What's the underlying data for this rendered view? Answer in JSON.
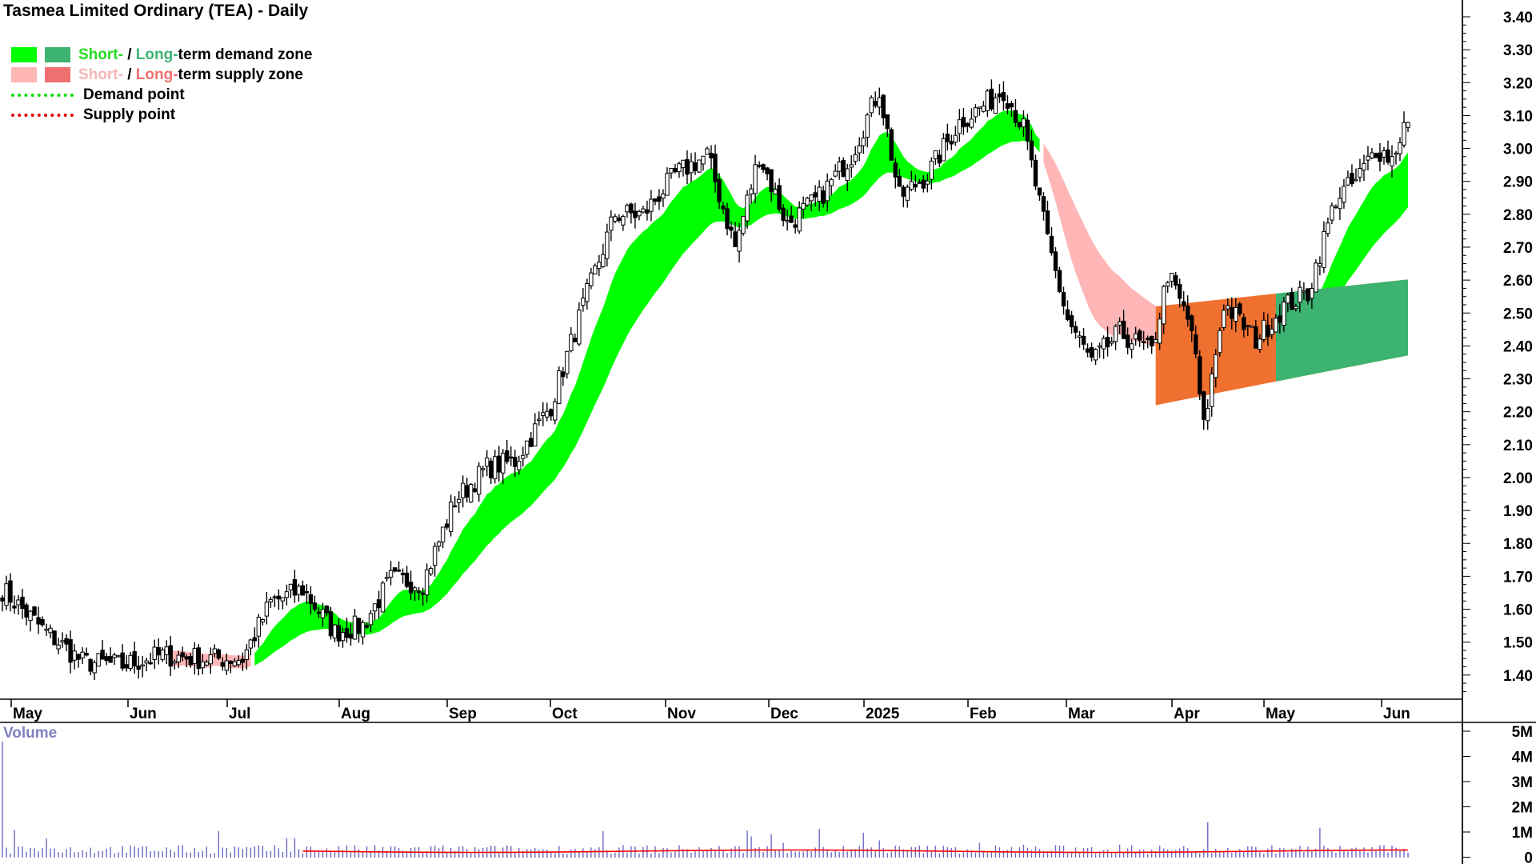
{
  "chart_data": {
    "type": "candlestick",
    "title": "Tasmea Limited Ordinary (TEA) - Daily",
    "legend": {
      "demand_zone": {
        "short": "Short-",
        "sep": " / ",
        "long": "Long-",
        "rest": "term demand zone"
      },
      "supply_zone": {
        "short": "Short-",
        "sep": " / ",
        "long": "Long-",
        "rest": "term supply zone"
      },
      "demand_point": "Demand point",
      "supply_point": "Supply point",
      "placement": "top-left"
    },
    "x_ticks": [
      "May",
      "Jun",
      "Jul",
      "Aug",
      "Sep",
      "Oct",
      "Nov",
      "Dec",
      "2025",
      "Feb",
      "Mar",
      "Apr",
      "May",
      "Jun"
    ],
    "y_ticks": [
      "3.40",
      "3.30",
      "3.20",
      "3.10",
      "3.00",
      "2.90",
      "2.80",
      "2.70",
      "2.60",
      "2.50",
      "2.40",
      "2.30",
      "2.20",
      "2.10",
      "2.00",
      "1.90",
      "1.80",
      "1.70",
      "1.60",
      "1.50",
      "1.40"
    ],
    "ylim": [
      1.32,
      3.44
    ],
    "close_anchors": [
      [
        0,
        1.66
      ],
      [
        10,
        1.54
      ],
      [
        20,
        1.44
      ],
      [
        30,
        1.43
      ],
      [
        40,
        1.46
      ],
      [
        50,
        1.45
      ],
      [
        60,
        1.45
      ],
      [
        67,
        1.62
      ],
      [
        75,
        1.66
      ],
      [
        83,
        1.53
      ],
      [
        90,
        1.55
      ],
      [
        97,
        1.69
      ],
      [
        105,
        1.68
      ],
      [
        113,
        1.93
      ],
      [
        121,
        2.03
      ],
      [
        128,
        2.05
      ],
      [
        137,
        2.22
      ],
      [
        145,
        2.52
      ],
      [
        153,
        2.8
      ],
      [
        160,
        2.8
      ],
      [
        168,
        2.92
      ],
      [
        176,
        2.98
      ],
      [
        183,
        2.7
      ],
      [
        189,
        2.98
      ],
      [
        196,
        2.77
      ],
      [
        204,
        2.85
      ],
      [
        212,
        2.98
      ],
      [
        219,
        3.18
      ],
      [
        224,
        2.85
      ],
      [
        231,
        2.92
      ],
      [
        239,
        3.08
      ],
      [
        245,
        3.13
      ],
      [
        250,
        3.18
      ],
      [
        255,
        3.06
      ],
      [
        261,
        2.72
      ],
      [
        266,
        2.48
      ],
      [
        272,
        2.35
      ],
      [
        279,
        2.44
      ],
      [
        287,
        2.38
      ],
      [
        291,
        2.62
      ],
      [
        297,
        2.45
      ],
      [
        300,
        2.15
      ],
      [
        305,
        2.53
      ],
      [
        313,
        2.42
      ],
      [
        320,
        2.52
      ],
      [
        326,
        2.56
      ],
      [
        333,
        2.85
      ],
      [
        338,
        2.9
      ],
      [
        343,
        3.0
      ],
      [
        347,
        2.97
      ],
      [
        350,
        3.07
      ]
    ],
    "volume_label": "Volume",
    "volume_ticks": [
      "5M",
      "4M",
      "3M",
      "2M",
      "1M",
      "0"
    ],
    "volume_ylim": [
      0,
      5
    ]
  }
}
